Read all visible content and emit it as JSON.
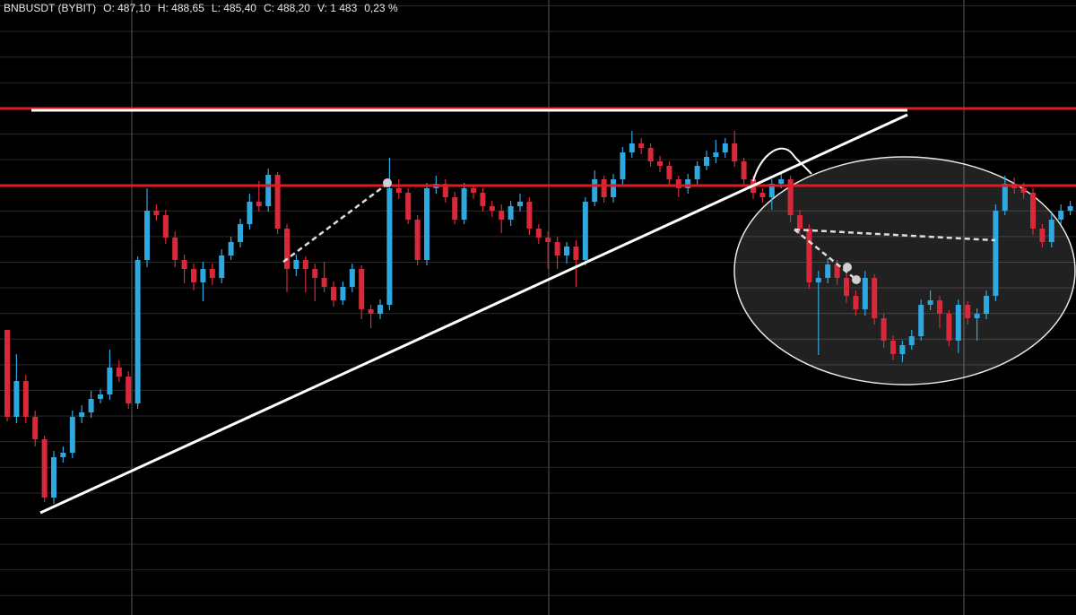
{
  "chart_data": {
    "type": "candlestick",
    "title": "BNBUSDT (BYBIT)",
    "annotations": [
      "O: 487,10",
      "H: 488,65",
      "L: 485,40",
      "C: 488,20",
      "V: 1 483",
      "0,23 %"
    ],
    "ylim": [
      0,
      686
    ],
    "up_color": "#2fa8e0",
    "down_color": "#d8283a",
    "open": [
      318,
      221,
      261,
      221,
      196,
      131,
      176,
      181,
      221,
      226,
      241,
      246,
      276,
      266,
      236,
      396,
      451,
      446,
      421,
      396,
      386,
      371,
      386,
      376,
      401,
      416,
      436,
      461,
      456,
      491,
      431,
      386,
      396,
      386,
      376,
      366,
      351,
      366,
      386,
      341,
      336,
      346,
      476,
      471,
      441,
      396,
      476,
      481,
      466,
      441,
      476,
      471,
      456,
      451,
      441,
      456,
      461,
      431,
      421,
      416,
      401,
      411,
      396,
      461,
      486,
      466,
      486,
      516,
      526,
      521,
      506,
      501,
      486,
      476,
      486,
      501,
      511,
      516,
      526,
      506,
      486,
      471,
      466,
      481,
      486,
      446,
      431,
      371,
      376,
      391,
      376,
      356,
      341,
      376,
      331,
      306,
      291,
      301,
      311,
      346,
      351,
      336,
      306,
      346,
      331,
      336,
      356,
      451,
      481,
      476,
      471,
      431,
      416,
      441,
      451
    ],
    "high": [
      318,
      291,
      268,
      228,
      200,
      183,
      188,
      228,
      234,
      250,
      252,
      296,
      284,
      272,
      400,
      476,
      458,
      452,
      428,
      402,
      392,
      394,
      392,
      408,
      422,
      442,
      470,
      484,
      498,
      494,
      436,
      402,
      400,
      392,
      394,
      372,
      372,
      392,
      390,
      346,
      352,
      510,
      486,
      476,
      446,
      482,
      490,
      486,
      472,
      482,
      480,
      476,
      462,
      458,
      462,
      470,
      466,
      436,
      428,
      422,
      416,
      418,
      466,
      496,
      490,
      492,
      522,
      540,
      532,
      526,
      512,
      506,
      490,
      492,
      506,
      518,
      530,
      532,
      540,
      510,
      490,
      476,
      486,
      494,
      490,
      452,
      436,
      384,
      398,
      396,
      382,
      362,
      384,
      380,
      336,
      312,
      306,
      318,
      352,
      362,
      356,
      340,
      352,
      350,
      342,
      362,
      458,
      490,
      488,
      482,
      476,
      436,
      448,
      458,
      462
    ],
    "low": [
      216,
      214,
      214,
      188,
      126,
      124,
      170,
      175,
      214,
      220,
      236,
      240,
      260,
      230,
      230,
      388,
      440,
      414,
      388,
      370,
      362,
      350,
      368,
      370,
      396,
      410,
      430,
      450,
      450,
      425,
      360,
      378,
      360,
      350,
      360,
      344,
      346,
      360,
      330,
      320,
      330,
      340,
      464,
      436,
      390,
      390,
      470,
      460,
      436,
      436,
      464,
      450,
      444,
      426,
      434,
      450,
      424,
      414,
      386,
      386,
      392,
      366,
      390,
      456,
      460,
      460,
      480,
      510,
      514,
      500,
      494,
      478,
      466,
      470,
      480,
      496,
      504,
      510,
      500,
      480,
      464,
      460,
      452,
      476,
      438,
      424,
      364,
      290,
      370,
      368,
      348,
      334,
      334,
      324,
      298,
      284,
      282,
      296,
      306,
      340,
      320,
      300,
      292,
      324,
      306,
      330,
      350,
      446,
      470,
      464,
      424,
      410,
      410,
      436,
      446
    ],
    "close": [
      221,
      261,
      221,
      196,
      131,
      176,
      181,
      221,
      226,
      241,
      246,
      276,
      266,
      236,
      396,
      451,
      446,
      421,
      396,
      386,
      371,
      386,
      376,
      401,
      416,
      436,
      461,
      456,
      491,
      431,
      386,
      396,
      386,
      376,
      366,
      351,
      366,
      386,
      341,
      336,
      346,
      476,
      471,
      441,
      396,
      476,
      481,
      466,
      441,
      476,
      471,
      456,
      451,
      441,
      456,
      461,
      431,
      421,
      416,
      401,
      411,
      396,
      461,
      486,
      466,
      486,
      516,
      526,
      521,
      506,
      501,
      486,
      476,
      486,
      501,
      511,
      516,
      526,
      506,
      486,
      471,
      466,
      481,
      486,
      446,
      431,
      371,
      376,
      391,
      376,
      356,
      341,
      376,
      331,
      306,
      291,
      301,
      311,
      346,
      351,
      336,
      306,
      346,
      331,
      336,
      356,
      451,
      481,
      476,
      471,
      431,
      416,
      441,
      451,
      456
    ]
  }
}
